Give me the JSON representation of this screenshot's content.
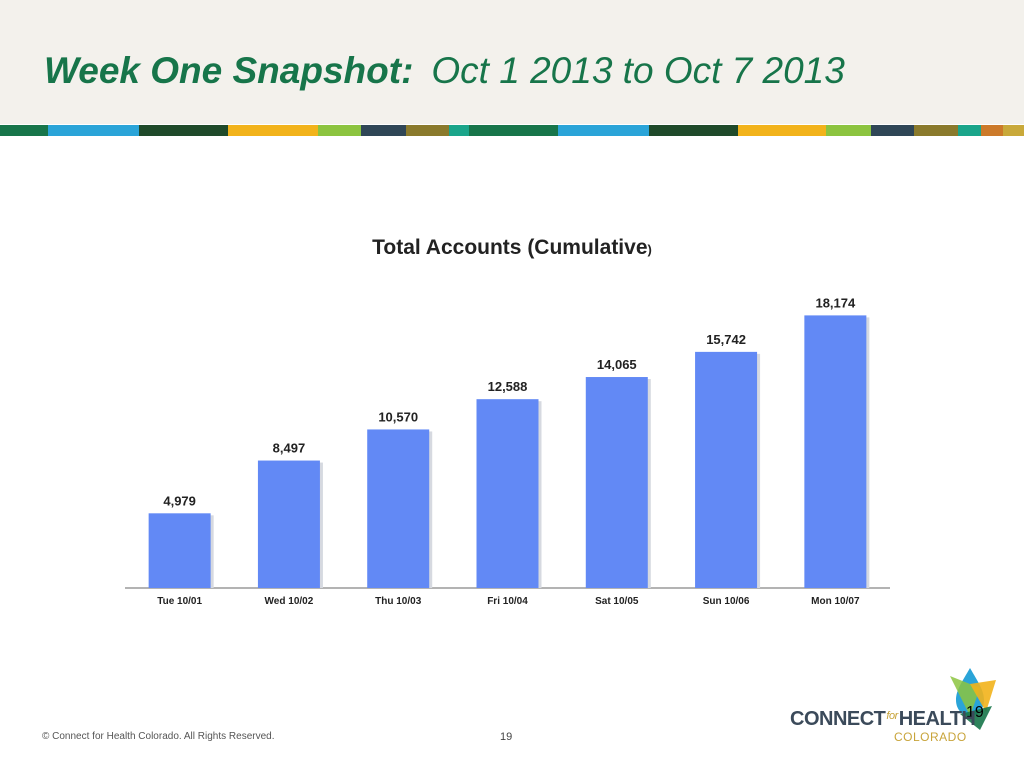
{
  "slide": {
    "title_bold": "Week One Snapshot:",
    "title_rest": "Oct 1 2013 to Oct 7 2013",
    "footer": "© Connect for Health Colorado. All Rights Reserved.",
    "page_number": "19",
    "colors": {
      "title": "#17754a",
      "band": "#f3f1ec",
      "stripe": [
        "#17754a",
        "#2aa4d8",
        "#1f4a2a",
        "#f2b31b",
        "#8cc43f",
        "#2f4656",
        "#8a7a2c",
        "#1aa58a",
        "#17754a",
        "#2aa4d8",
        "#1f4a2a",
        "#f2b31b",
        "#8cc43f",
        "#2f4656",
        "#8a7a2c",
        "#1aa58a",
        "#cc7a2a",
        "#c9a93a"
      ]
    }
  },
  "logo": {
    "text_left": "CONNECT",
    "text_for": "for",
    "text_right": "HEALTH",
    "subtext": "COLORADO",
    "icon_number": "19",
    "icon": "connect-for-health-leaf-drop-icon"
  },
  "chart_data": {
    "type": "bar",
    "title": "Total Accounts (Cumulative",
    "title_suffix": ")",
    "categories": [
      "Tue 10/01",
      "Wed 10/02",
      "Thu 10/03",
      "Fri 10/04",
      "Sat 10/05",
      "Sun 10/06",
      "Mon 10/07"
    ],
    "values": [
      4979,
      8497,
      10570,
      12588,
      14065,
      15742,
      18174
    ],
    "data_labels": [
      "4,979",
      "8,497",
      "10,570",
      "12,588",
      "14,065",
      "15,742",
      "18,174"
    ],
    "ylim": [
      0,
      20000
    ],
    "grid": false,
    "bar_color": "#6289f5"
  }
}
